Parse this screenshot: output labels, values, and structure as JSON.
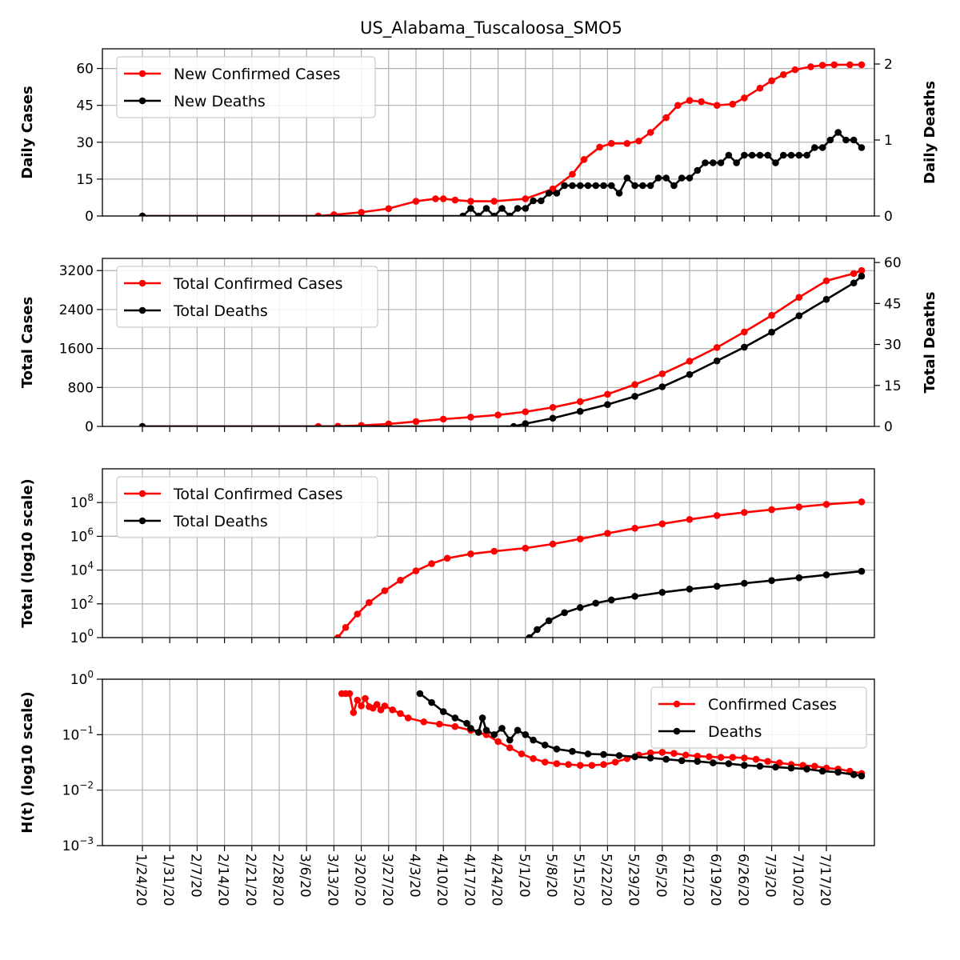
{
  "figure_title": "US_Alabama_Tuscaloosa_SMO5",
  "dates": [
    "1/24/20",
    "1/31/20",
    "2/7/20",
    "2/14/20",
    "2/21/20",
    "2/28/20",
    "3/6/20",
    "3/13/20",
    "3/20/20",
    "3/27/20",
    "4/3/20",
    "4/10/20",
    "4/17/20",
    "4/24/20",
    "5/1/20",
    "5/8/20",
    "5/15/20",
    "5/22/20",
    "5/29/20",
    "6/5/20",
    "6/12/20",
    "6/19/20",
    "6/26/20",
    "7/3/20",
    "7/10/20",
    "7/17/20"
  ],
  "colors": {
    "cases": "#ff0000",
    "deaths": "#000000",
    "grid": "#b0b0b0"
  },
  "chart_data": [
    {
      "type": "line",
      "ylabel": "Daily Cases",
      "y2label": "Daily Deaths",
      "ylim": [
        0,
        68
      ],
      "y2lim": [
        0,
        2.2
      ],
      "yticks": [
        "0",
        "15",
        "30",
        "45",
        "60"
      ],
      "y2ticks": [
        "0",
        "1",
        "2"
      ],
      "legend": "top-left",
      "grid": true,
      "series": [
        {
          "name": "New Confirmed Cases",
          "axis": "left",
          "color": "#ff0000",
          "x": [
            0,
            45,
            49,
            56,
            63,
            70,
            75,
            77,
            80,
            84,
            90,
            98,
            105,
            110,
            113,
            117,
            120,
            124,
            127,
            130,
            134,
            137,
            140,
            143,
            147,
            151,
            154,
            158,
            161,
            164,
            167,
            171,
            174,
            177,
            181,
            184
          ],
          "y": [
            0,
            0,
            0.5,
            1.5,
            3,
            6,
            7,
            7,
            6.5,
            6,
            6,
            7,
            11,
            17,
            23,
            28,
            29.5,
            29.5,
            30.5,
            34,
            40,
            45,
            47,
            46.5,
            45,
            45.5,
            48,
            52,
            55,
            57.5,
            59.5,
            60.7,
            61.3,
            61.5,
            61.5,
            61.5
          ]
        },
        {
          "name": "New Deaths",
          "axis": "right",
          "color": "#000000",
          "x": [
            0,
            82,
            84,
            86,
            88,
            90,
            92,
            94,
            96,
            98,
            100,
            102,
            104,
            106,
            108,
            110,
            112,
            114,
            116,
            118,
            120,
            122,
            124,
            126,
            128,
            130,
            132,
            134,
            136,
            138,
            140,
            142,
            144,
            146,
            148,
            150,
            152,
            154,
            156,
            158,
            160,
            162,
            164,
            166,
            168,
            170,
            172,
            174,
            176,
            178,
            180,
            182,
            184
          ],
          "y": [
            0,
            0,
            0.1,
            0,
            0.1,
            0,
            0.1,
            0,
            0.1,
            0.1,
            0.2,
            0.2,
            0.3,
            0.3,
            0.4,
            0.4,
            0.4,
            0.4,
            0.4,
            0.4,
            0.4,
            0.3,
            0.5,
            0.4,
            0.4,
            0.4,
            0.5,
            0.5,
            0.4,
            0.5,
            0.5,
            0.6,
            0.7,
            0.7,
            0.7,
            0.8,
            0.7,
            0.8,
            0.8,
            0.8,
            0.8,
            0.7,
            0.8,
            0.8,
            0.8,
            0.8,
            0.9,
            0.9,
            1.0,
            1.1,
            1.0,
            1.0,
            0.9
          ]
        }
      ]
    },
    {
      "type": "line",
      "ylabel": "Total Cases",
      "y2label": "Total Deaths",
      "ylim": [
        0,
        3450
      ],
      "y2lim": [
        0,
        61.5
      ],
      "yticks": [
        "0",
        "800",
        "1600",
        "2400",
        "3200"
      ],
      "y2ticks": [
        "0",
        "15",
        "30",
        "45",
        "60"
      ],
      "legend": "top-left",
      "grid": true,
      "series": [
        {
          "name": "Total Confirmed Cases",
          "axis": "left",
          "color": "#ff0000",
          "x": [
            0,
            45,
            50,
            56,
            63,
            70,
            77,
            84,
            91,
            98,
            105,
            112,
            119,
            126,
            133,
            140,
            147,
            154,
            161,
            168,
            175,
            182,
            184
          ],
          "y": [
            0,
            0,
            4,
            20,
            50,
            100,
            150,
            190,
            235,
            300,
            390,
            510,
            660,
            860,
            1080,
            1340,
            1620,
            1940,
            2280,
            2650,
            2990,
            3140,
            3200
          ]
        },
        {
          "name": "Total Deaths",
          "axis": "right",
          "color": "#000000",
          "x": [
            0,
            95,
            98,
            105,
            112,
            119,
            126,
            133,
            140,
            147,
            154,
            161,
            168,
            175,
            182,
            184
          ],
          "y": [
            0,
            0,
            1,
            3,
            5.5,
            8,
            11,
            14.5,
            19,
            24,
            29,
            34.5,
            40.5,
            46.5,
            52.5,
            55
          ]
        }
      ]
    },
    {
      "type": "line",
      "ylabel": "Total (log10 scale)",
      "yscale": "log",
      "ylim": [
        1,
        10000000000
      ],
      "yticks": [
        "10^0",
        "10^2",
        "10^4",
        "10^6",
        "10^8"
      ],
      "legend": "top-left",
      "grid": true,
      "series": [
        {
          "name": "Total Confirmed Cases",
          "axis": "left",
          "color": "#ff0000",
          "x": [
            50,
            52,
            55,
            58,
            62,
            66,
            70,
            74,
            78,
            84,
            90,
            98,
            105,
            112,
            119,
            126,
            133,
            140,
            147,
            154,
            161,
            168,
            175,
            184
          ],
          "y": [
            1,
            4,
            25,
            120,
            600,
            2500,
            9000,
            24000,
            50000,
            90000,
            130000,
            200000,
            350000,
            700000,
            1500000,
            3000000,
            5500000,
            10000000,
            17000000,
            26000000,
            38000000,
            55000000,
            78000000,
            110000000
          ]
        },
        {
          "name": "Total Deaths",
          "axis": "left",
          "color": "#000000",
          "x": [
            99,
            101,
            104,
            108,
            112,
            116,
            120,
            126,
            133,
            140,
            147,
            154,
            161,
            168,
            175,
            184
          ],
          "y": [
            1,
            3,
            10,
            30,
            60,
            110,
            170,
            280,
            480,
            750,
            1100,
            1650,
            2400,
            3500,
            5200,
            8500
          ]
        }
      ]
    },
    {
      "type": "line",
      "ylabel": "H(t) (log10 scale)",
      "yscale": "log",
      "ylim": [
        0.001,
        1
      ],
      "yticks": [
        "10^0",
        "10^-1",
        "10^-2",
        "10^-3"
      ],
      "legend": "top-right",
      "grid": true,
      "series": [
        {
          "name": "Confirmed Cases",
          "axis": "left",
          "color": "#ff0000",
          "x": [
            51,
            52,
            53,
            54,
            55,
            56,
            57,
            58,
            59,
            60,
            61,
            62,
            64,
            66,
            68,
            72,
            76,
            80,
            84,
            88,
            91,
            94,
            97,
            100,
            103,
            106,
            109,
            112,
            115,
            118,
            121,
            124,
            127,
            130,
            133,
            136,
            139,
            142,
            145,
            148,
            151,
            154,
            157,
            160,
            163,
            166,
            169,
            172,
            175,
            178,
            181,
            184
          ],
          "y": [
            0.55,
            0.55,
            0.55,
            0.25,
            0.42,
            0.33,
            0.45,
            0.32,
            0.3,
            0.35,
            0.28,
            0.33,
            0.28,
            0.24,
            0.2,
            0.17,
            0.155,
            0.14,
            0.12,
            0.1,
            0.075,
            0.058,
            0.045,
            0.037,
            0.032,
            0.03,
            0.029,
            0.028,
            0.028,
            0.029,
            0.032,
            0.037,
            0.043,
            0.047,
            0.048,
            0.046,
            0.043,
            0.041,
            0.04,
            0.039,
            0.039,
            0.038,
            0.036,
            0.033,
            0.031,
            0.029,
            0.028,
            0.027,
            0.025,
            0.024,
            0.022,
            0.02
          ]
        },
        {
          "name": "Deaths",
          "axis": "left",
          "color": "#000000",
          "x": [
            71,
            74,
            77,
            80,
            83,
            84,
            86,
            87,
            88,
            90,
            92,
            94,
            96,
            98,
            100,
            103,
            106,
            110,
            114,
            118,
            122,
            126,
            130,
            134,
            138,
            142,
            146,
            150,
            154,
            158,
            162,
            166,
            170,
            174,
            178,
            182,
            184
          ],
          "y": [
            0.55,
            0.38,
            0.26,
            0.2,
            0.16,
            0.13,
            0.11,
            0.2,
            0.12,
            0.1,
            0.13,
            0.08,
            0.12,
            0.1,
            0.08,
            0.065,
            0.055,
            0.05,
            0.045,
            0.044,
            0.042,
            0.04,
            0.038,
            0.036,
            0.034,
            0.033,
            0.031,
            0.03,
            0.028,
            0.027,
            0.026,
            0.025,
            0.024,
            0.022,
            0.021,
            0.019,
            0.018
          ]
        }
      ]
    }
  ]
}
